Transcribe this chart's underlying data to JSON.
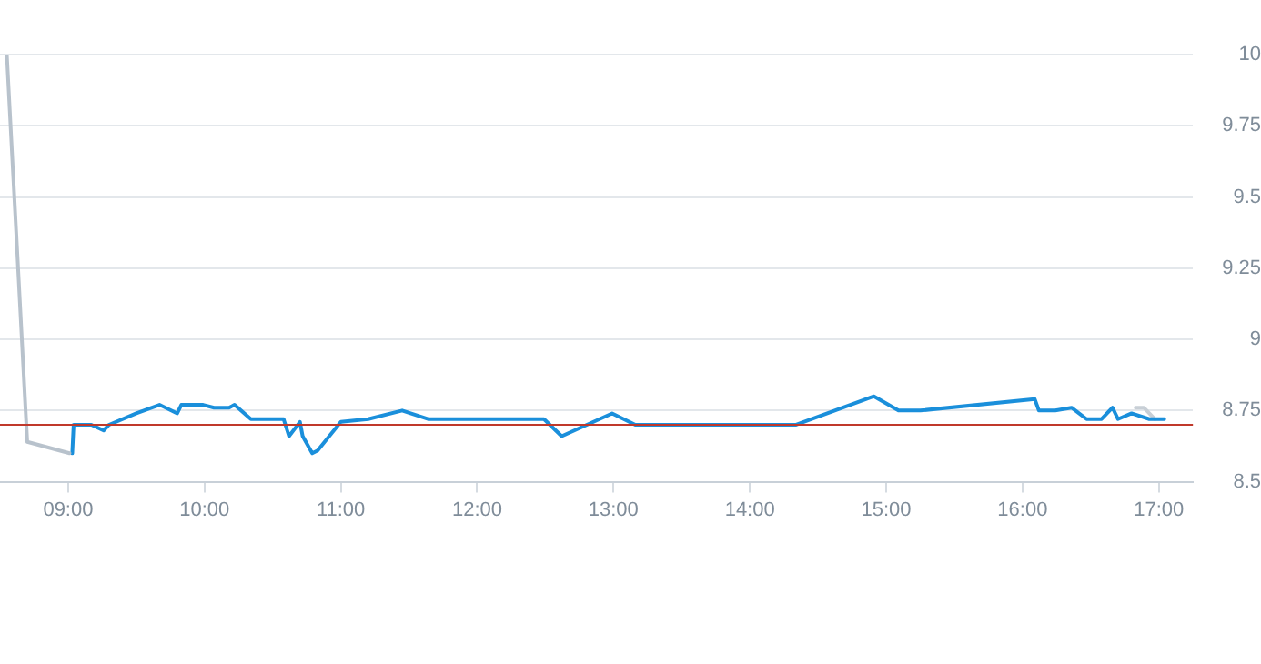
{
  "chart_data": {
    "type": "line",
    "xlim": [
      8.5,
      17.25
    ],
    "xticks": [
      {
        "value": 9,
        "label": "09:00"
      },
      {
        "value": 10,
        "label": "10:00"
      },
      {
        "value": 11,
        "label": "11:00"
      },
      {
        "value": 12,
        "label": "12:00"
      },
      {
        "value": 13,
        "label": "13:00"
      },
      {
        "value": 14,
        "label": "14:00"
      },
      {
        "value": 15,
        "label": "15:00"
      },
      {
        "value": 16,
        "label": "16:00"
      },
      {
        "value": 17,
        "label": "17:00"
      }
    ],
    "ylim": [
      8.5,
      10
    ],
    "yticks": [
      8.5,
      8.75,
      9,
      9.25,
      9.5,
      9.75,
      10
    ],
    "grid": "y",
    "marker": "none",
    "line_style": "solid",
    "ref_lines": [
      {
        "axis": "y",
        "value": 8.7,
        "color": "#c0392b"
      }
    ],
    "series": [
      {
        "color": "#b8c2cc",
        "x": [
          8.55,
          8.7,
          9.01
        ],
        "values": [
          10.0,
          8.64,
          8.6
        ]
      },
      {
        "color": "#1a8fdb",
        "x": [
          9.03,
          9.04,
          9.17,
          9.26,
          9.3,
          9.5,
          9.67,
          9.8,
          9.83,
          9.99,
          10.07,
          10.18,
          10.22,
          10.34,
          10.58,
          10.62,
          10.7,
          10.72,
          10.79,
          10.83,
          11.0,
          11.2,
          11.45,
          11.64,
          12.49,
          12.62,
          12.99,
          13.16,
          14.34,
          14.91,
          15.09,
          15.25,
          16.09,
          16.12,
          16.24,
          16.36,
          16.47,
          16.58,
          16.66,
          16.7,
          16.8,
          16.93,
          17.04
        ],
        "values": [
          8.6,
          8.7,
          8.7,
          8.68,
          8.7,
          8.74,
          8.77,
          8.74,
          8.77,
          8.77,
          8.76,
          8.76,
          8.77,
          8.72,
          8.72,
          8.66,
          8.71,
          8.66,
          8.6,
          8.61,
          8.71,
          8.72,
          8.75,
          8.72,
          8.72,
          8.66,
          8.74,
          8.7,
          8.7,
          8.8,
          8.75,
          8.75,
          8.79,
          8.75,
          8.75,
          8.76,
          8.72,
          8.72,
          8.76,
          8.72,
          8.74,
          8.72,
          8.72
        ]
      },
      {
        "color": "#c8cfd6",
        "x": [
          16.83,
          16.89,
          16.97
        ],
        "values": [
          8.76,
          8.76,
          8.72
        ]
      }
    ]
  }
}
